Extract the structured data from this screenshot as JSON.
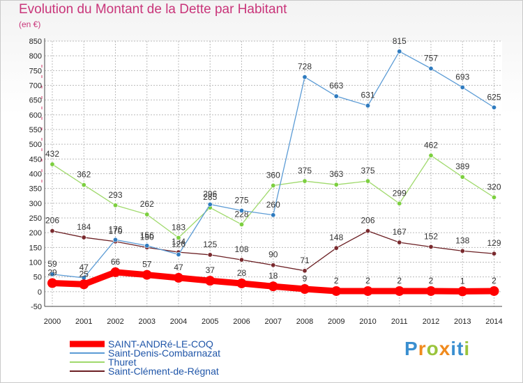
{
  "title": "Evolution du Montant de la Dette par Habitant",
  "unit": "(en €)",
  "logo": "Proxiti",
  "chart_data": {
    "type": "line",
    "x": [
      "2000",
      "2001",
      "2002",
      "2003",
      "2004",
      "2005",
      "2006",
      "2007",
      "2008",
      "2009",
      "2010",
      "2011",
      "2012",
      "2013",
      "2014"
    ],
    "ylim": [
      -50,
      850
    ],
    "yticks": [
      -50,
      0,
      50,
      100,
      150,
      200,
      250,
      300,
      350,
      400,
      450,
      500,
      550,
      600,
      650,
      700,
      750,
      800,
      850
    ],
    "grid": true,
    "legend_position": "bottom-left",
    "series": [
      {
        "name": "Saint-Clément-de-Régnat",
        "color": "#6b1f23",
        "marker": "#7a2a2e",
        "values": [
          206,
          184,
          170,
          150,
          134,
          125,
          108,
          90,
          71,
          148,
          206,
          167,
          152,
          138,
          129
        ]
      },
      {
        "name": "Thuret",
        "color": "#9fd96b",
        "marker": "#7ccf3f",
        "values": [
          432,
          362,
          293,
          262,
          183,
          285,
          228,
          360,
          375,
          363,
          375,
          299,
          462,
          389,
          320
        ]
      },
      {
        "name": "Saint-Denis-Combarnazat",
        "color": "#5b9bd5",
        "marker": "#2f7bbf",
        "values": [
          59,
          47,
          176,
          156,
          126,
          296,
          275,
          260,
          728,
          663,
          631,
          815,
          757,
          693,
          625
        ]
      },
      {
        "name": "SAINT-ANDRé-LE-COQ",
        "color": "#ff0000",
        "marker": "#ff0000",
        "bold": true,
        "values": [
          29,
          25,
          66,
          57,
          47,
          37,
          28,
          18,
          9,
          2,
          2,
          2,
          2,
          1,
          2
        ]
      }
    ]
  }
}
